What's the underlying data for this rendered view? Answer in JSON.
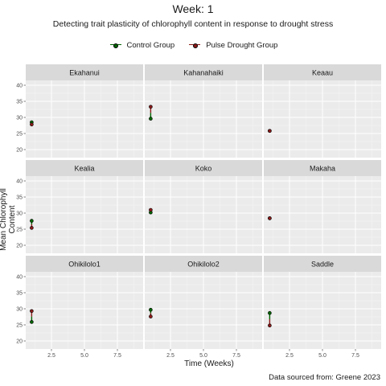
{
  "chart_data": {
    "type": "scatter",
    "title": "Week: 1",
    "subtitle": "Detecting trait plasticity of chlorophyll content in response to drought stress",
    "xlabel": "Time (Weeks)",
    "ylabel": "Mean Chlorophyll Content",
    "caption": "Data sourced from: Greene 2023",
    "legend_position": "top",
    "grid": true,
    "xlim": [
      0.55,
      9.45
    ],
    "ylim": [
      17.5,
      41.5
    ],
    "xticks": [
      "2.5",
      "5.0",
      "7.5"
    ],
    "yticks": [
      "20",
      "25",
      "30",
      "35",
      "40"
    ],
    "series": [
      {
        "name": "Control Group",
        "color": "#006400"
      },
      {
        "name": "Pulse Drought Group",
        "color": "#8B1A1A"
      }
    ],
    "facets": [
      {
        "label": "Ekahanui",
        "x": 1,
        "control": 28.5,
        "drought": 27.8
      },
      {
        "label": "Kahanahaiki",
        "x": 1,
        "control": 29.6,
        "drought": 33.3
      },
      {
        "label": "Keaau",
        "x": 1,
        "control": 25.8,
        "drought": 25.8
      },
      {
        "label": "Kealia",
        "x": 1,
        "control": 27.6,
        "drought": 25.4
      },
      {
        "label": "Koko",
        "x": 1,
        "control": 30.2,
        "drought": 31.0
      },
      {
        "label": "Makaha",
        "x": 1,
        "control": 28.4,
        "drought": 28.4
      },
      {
        "label": "Ohikilolo1",
        "x": 1,
        "control": 25.9,
        "drought": 29.3
      },
      {
        "label": "Ohikilolo2",
        "x": 1,
        "control": 29.7,
        "drought": 27.6
      },
      {
        "label": "Saddle",
        "x": 1,
        "control": 28.7,
        "drought": 24.8
      }
    ]
  }
}
